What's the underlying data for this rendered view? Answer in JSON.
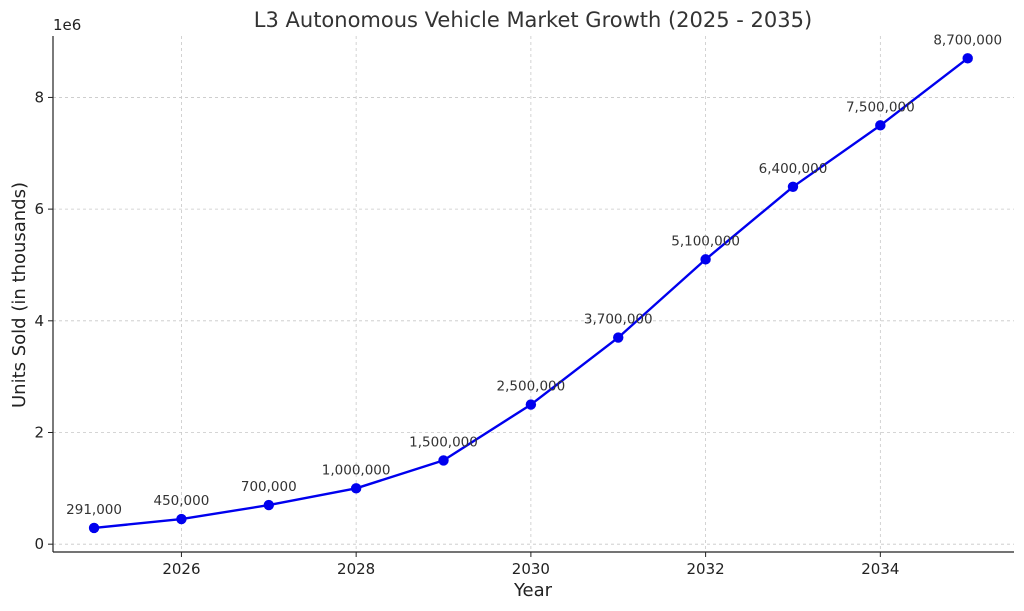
{
  "chart_data": {
    "type": "line",
    "title": "L3 Autonomous Vehicle Market Growth (2025 - 2035)",
    "xlabel": "Year",
    "ylabel": "Units Sold (in thousands)",
    "y_offset_label": "1e6",
    "xlim": [
      2024.53,
      2035.53
    ],
    "ylim": [
      -0.14,
      9.1
    ],
    "x_ticks": [
      2026,
      2028,
      2030,
      2032,
      2034
    ],
    "y_ticks": [
      0,
      2,
      4,
      6,
      8
    ],
    "grid": true,
    "series": [
      {
        "color": "#0000ee",
        "x": [
          2025,
          2026,
          2027,
          2028,
          2029,
          2030,
          2031,
          2032,
          2033,
          2034,
          2035
        ],
        "values": [
          291000,
          450000,
          700000,
          1000000,
          1500000,
          2500000,
          3700000,
          5100000,
          6400000,
          7500000,
          8700000
        ],
        "labels": [
          "291,000",
          "450,000",
          "700,000",
          "1,000,000",
          "1,500,000",
          "2,500,000",
          "3,700,000",
          "5,100,000",
          "6,400,000",
          "7,500,000",
          "8,700,000"
        ]
      }
    ]
  }
}
